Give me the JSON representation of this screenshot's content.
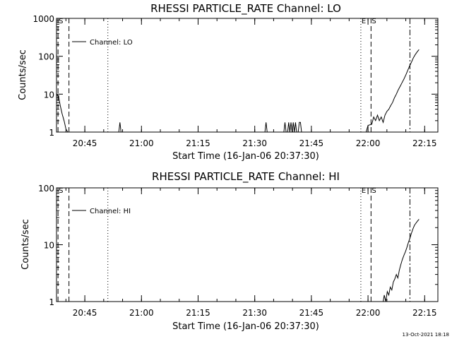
{
  "footer_stamp": "13-Oct-2021 18:18",
  "colors": {
    "background": "#ffffff",
    "foreground": "#000000"
  },
  "chart_data": [
    {
      "type": "line",
      "title": "RHESSI PARTICLE_RATE Channel: LO",
      "xlabel": "Start Time (16-Jan-06 20:37:30)",
      "ylabel": "Counts/sec",
      "y_scale": "log",
      "ylim": [
        1,
        1000
      ],
      "y_ticks": [
        "1",
        "10",
        "100",
        "1000"
      ],
      "xlim_minutes": [
        0,
        101
      ],
      "x_ticks": [
        {
          "label": "20:45",
          "minute": 7.5
        },
        {
          "label": "21:00",
          "minute": 22.5
        },
        {
          "label": "21:15",
          "minute": 37.5
        },
        {
          "label": "21:30",
          "minute": 52.5
        },
        {
          "label": "21:45",
          "minute": 67.5
        },
        {
          "label": "22:00",
          "minute": 82.5
        },
        {
          "label": "22:15",
          "minute": 97.5
        }
      ],
      "legend": {
        "position": "top-left",
        "label": "Channel: LO"
      },
      "event_markers": [
        {
          "label": "S",
          "minute": 0.4,
          "style": "dashed"
        },
        {
          "label": "",
          "minute": 3.3,
          "style": "dashed"
        },
        {
          "label": "",
          "minute": 13.6,
          "style": "dotted"
        },
        {
          "label": "E",
          "minute": 80.6,
          "style": "dotted"
        },
        {
          "label": "S",
          "minute": 83.3,
          "style": "dashed"
        },
        {
          "label": "",
          "minute": 93.6,
          "style": "dashdot"
        }
      ],
      "series": [
        {
          "points": [
            [
              0,
              10
            ],
            [
              0.5,
              9
            ],
            [
              1,
              5
            ],
            [
              1.5,
              3
            ],
            [
              2,
              2
            ],
            [
              2.5,
              1.2
            ],
            [
              3,
              1
            ],
            [
              16.5,
              1
            ],
            [
              16.8,
              1.8
            ],
            [
              17.1,
              1
            ],
            [
              55.2,
              1
            ],
            [
              55.5,
              1.8
            ],
            [
              55.8,
              1
            ],
            [
              60.2,
              1
            ],
            [
              60.5,
              1.8
            ],
            [
              60.8,
              1
            ],
            [
              61.2,
              1
            ],
            [
              61.5,
              1.8
            ],
            [
              61.8,
              1
            ],
            [
              62.1,
              1.8
            ],
            [
              62.4,
              1
            ],
            [
              62.7,
              1.8
            ],
            [
              63,
              1
            ],
            [
              63.3,
              1.8
            ],
            [
              63.6,
              1
            ],
            [
              64,
              1
            ],
            [
              64.3,
              1.8
            ],
            [
              64.6,
              1.8
            ],
            [
              64.9,
              1
            ],
            [
              81,
              1
            ],
            [
              82,
              1
            ],
            [
              82.5,
              1.5
            ],
            [
              83.5,
              1.6
            ],
            [
              84,
              2.5
            ],
            [
              84.5,
              2
            ],
            [
              85,
              2.8
            ],
            [
              85.5,
              2
            ],
            [
              86,
              2.5
            ],
            [
              86.5,
              1.8
            ],
            [
              87,
              2.8
            ],
            [
              87.5,
              3.5
            ],
            [
              88,
              4
            ],
            [
              88.5,
              5
            ],
            [
              89,
              6
            ],
            [
              89.5,
              8
            ],
            [
              90,
              10
            ],
            [
              90.5,
              13
            ],
            [
              91,
              16
            ],
            [
              91.5,
              20
            ],
            [
              92,
              25
            ],
            [
              92.5,
              32
            ],
            [
              93,
              42
            ],
            [
              93.5,
              55
            ],
            [
              94,
              70
            ],
            [
              94.5,
              90
            ],
            [
              95,
              110
            ],
            [
              95.5,
              130
            ],
            [
              96,
              150
            ]
          ]
        }
      ]
    },
    {
      "type": "line",
      "title": "RHESSI PARTICLE_RATE Channel: HI",
      "xlabel": "Start Time (16-Jan-06 20:37:30)",
      "ylabel": "Counts/sec",
      "y_scale": "log",
      "ylim": [
        1,
        100
      ],
      "y_ticks": [
        "1",
        "10",
        "100"
      ],
      "xlim_minutes": [
        0,
        101
      ],
      "x_ticks": [
        {
          "label": "20:45",
          "minute": 7.5
        },
        {
          "label": "21:00",
          "minute": 22.5
        },
        {
          "label": "21:15",
          "minute": 37.5
        },
        {
          "label": "21:30",
          "minute": 52.5
        },
        {
          "label": "21:45",
          "minute": 67.5
        },
        {
          "label": "22:00",
          "minute": 82.5
        },
        {
          "label": "22:15",
          "minute": 97.5
        }
      ],
      "legend": {
        "position": "top-left",
        "label": "Channel: HI"
      },
      "event_markers": [
        {
          "label": "S",
          "minute": 0.4,
          "style": "dashed"
        },
        {
          "label": "",
          "minute": 3.3,
          "style": "dashed"
        },
        {
          "label": "",
          "minute": 13.6,
          "style": "dotted"
        },
        {
          "label": "E",
          "minute": 80.6,
          "style": "dotted"
        },
        {
          "label": "S",
          "minute": 83.3,
          "style": "dashed"
        },
        {
          "label": "",
          "minute": 93.6,
          "style": "dashdot"
        }
      ],
      "series": [
        {
          "points": [
            [
              86,
              1
            ],
            [
              86.5,
              1
            ],
            [
              86.8,
              1.3
            ],
            [
              87.2,
              1
            ],
            [
              87.6,
              1.5
            ],
            [
              88,
              1.3
            ],
            [
              88.4,
              1.8
            ],
            [
              88.8,
              1.6
            ],
            [
              89.2,
              2.2
            ],
            [
              89.6,
              2.5
            ],
            [
              90,
              3
            ],
            [
              90.4,
              2.6
            ],
            [
              90.8,
              3.6
            ],
            [
              91.2,
              4.5
            ],
            [
              91.6,
              5.5
            ],
            [
              92,
              6.5
            ],
            [
              92.4,
              7.5
            ],
            [
              92.8,
              9
            ],
            [
              93.2,
              11
            ],
            [
              93.6,
              13
            ],
            [
              94,
              16
            ],
            [
              94.4,
              19
            ],
            [
              94.8,
              22
            ],
            [
              95.2,
              24
            ],
            [
              95.6,
              26
            ],
            [
              96,
              28
            ]
          ]
        }
      ]
    }
  ]
}
